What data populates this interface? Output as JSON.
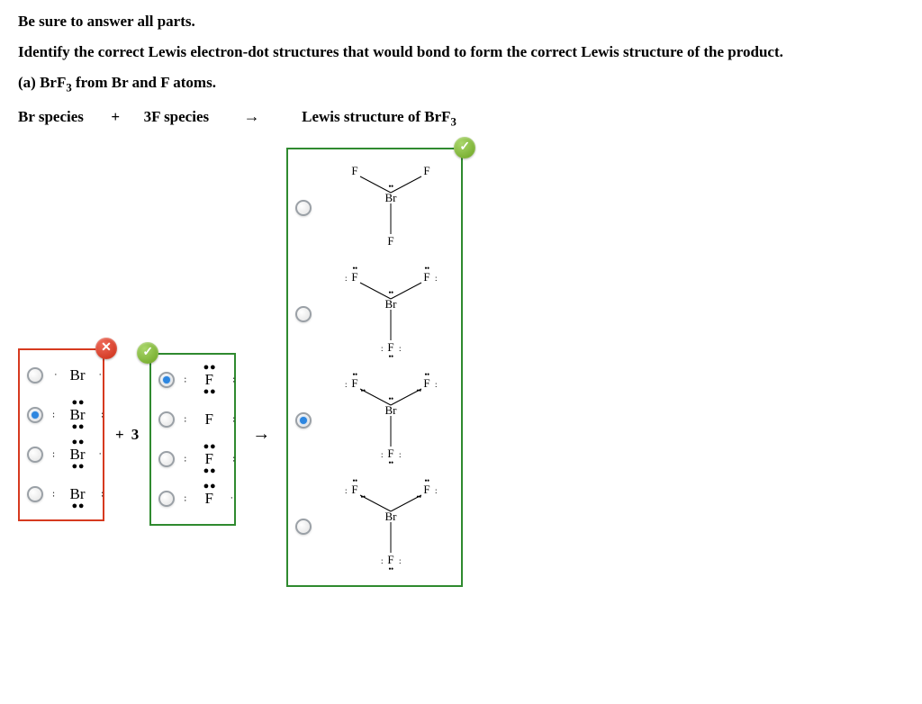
{
  "colors": {
    "text": "#000000",
    "background": "#ffffff",
    "border_incorrect": "#d63a1f",
    "border_correct": "#2f8a2f",
    "radio_fill": "#2d86e0",
    "badge_wrong": "#c92a12",
    "badge_right": "#6aa31f"
  },
  "typography": {
    "family": "Times New Roman",
    "body_size_pt": 13,
    "bold_weight": 700
  },
  "instructions": {
    "line1": "Be sure to answer all parts.",
    "line2": "Identify the correct Lewis electron-dot structures that would bond to form the correct Lewis structure of the product.",
    "part_label": "(a) BrF",
    "part_sub": "3",
    "part_tail": " from Br and F atoms."
  },
  "equation": {
    "br_species": "Br species",
    "plus": "+",
    "f_species": "3F species",
    "arrow": "→",
    "product_label_a": "Lewis structure of BrF",
    "product_label_sub": "3"
  },
  "plus_three": {
    "plus": "+",
    "three": "3"
  },
  "react_arrow": "→",
  "feedback": {
    "wrong_glyph": "✕",
    "right_glyph": "✓"
  },
  "br_options": {
    "status": "incorrect",
    "selected_index": 1,
    "items": [
      {
        "atom": "Br",
        "lone_pairs": {
          "top": false,
          "bottom": false,
          "left_pair": false,
          "right_pair": false,
          "left_single": true,
          "right_single": true
        }
      },
      {
        "atom": "Br",
        "lone_pairs": {
          "top": true,
          "bottom": true,
          "left_pair": true,
          "right_pair": true,
          "left_single": false,
          "right_single": false
        }
      },
      {
        "atom": "Br",
        "lone_pairs": {
          "top": true,
          "bottom": true,
          "left_pair": true,
          "right_pair": false,
          "left_single": false,
          "right_single": true
        }
      },
      {
        "atom": "Br",
        "lone_pairs": {
          "top": false,
          "bottom": true,
          "left_pair": true,
          "right_pair": true,
          "left_single": false,
          "right_single": false
        }
      }
    ]
  },
  "f_options": {
    "status": "correct",
    "selected_index": 0,
    "items": [
      {
        "atom": "F",
        "lone_pairs": {
          "top": true,
          "bottom": true,
          "left_pair": true,
          "right_pair": true,
          "top_single": false
        }
      },
      {
        "atom": "F",
        "lone_pairs": {
          "top": false,
          "bottom": false,
          "left_pair": true,
          "right_pair": true,
          "top_single": false
        }
      },
      {
        "atom": "F",
        "lone_pairs": {
          "top": true,
          "bottom": true,
          "left_pair": true,
          "right_pair": true,
          "top_single": false
        }
      },
      {
        "atom": "F",
        "lone_pairs": {
          "top": true,
          "bottom": false,
          "left_pair": true,
          "right_pair": false,
          "top_single": false,
          "right_single": true
        }
      }
    ]
  },
  "product_options": {
    "status": "correct",
    "selected_index": 2,
    "items": [
      {
        "center": "Br",
        "center_lp_top": true,
        "f_lone_pairs": 0,
        "bottom_f_lp3": false
      },
      {
        "center": "Br",
        "center_lp_top": true,
        "f_lone_pairs": 2,
        "bottom_f_lp3": true
      },
      {
        "center": "Br",
        "center_lp_top": true,
        "f_lone_pairs": 3,
        "bottom_f_lp3": true
      },
      {
        "center": "Br",
        "center_lp_top": false,
        "f_lone_pairs": 3,
        "bottom_f_lp3": true
      }
    ],
    "f_label": "F"
  }
}
